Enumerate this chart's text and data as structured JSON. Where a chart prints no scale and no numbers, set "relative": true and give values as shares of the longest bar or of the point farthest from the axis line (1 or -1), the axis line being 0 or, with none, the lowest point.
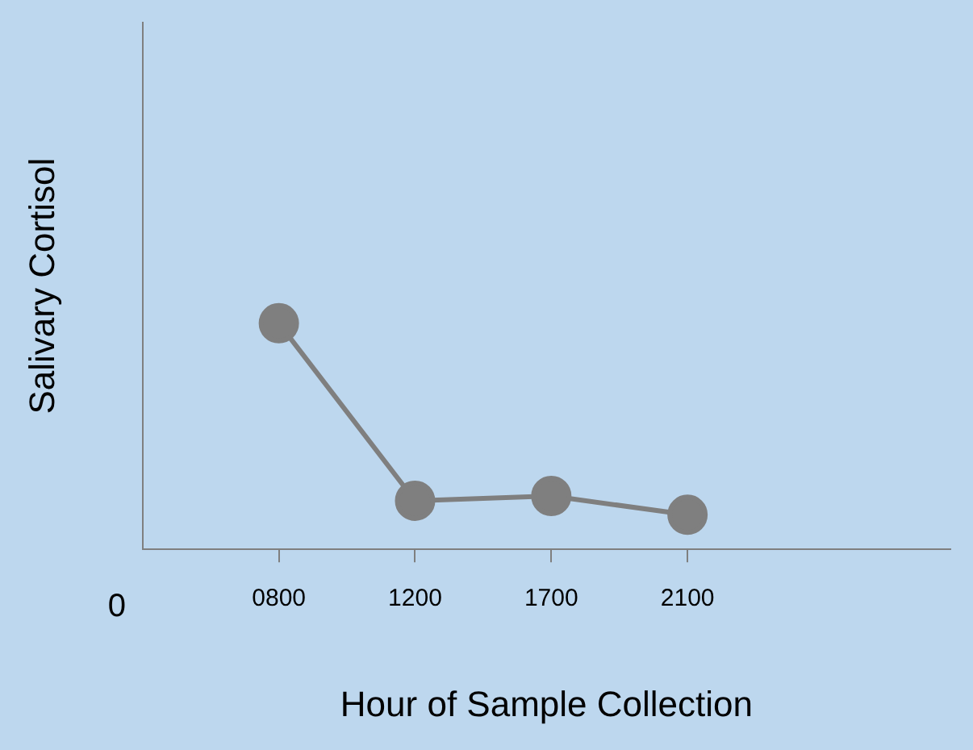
{
  "chart_data": {
    "type": "line",
    "relative": true,
    "xlabel": "Hour of Sample Collection",
    "ylabel": "Salivary Cortisol",
    "categories": [
      "0800",
      "1200",
      "1700",
      "2100"
    ],
    "series": [
      {
        "color": "#7f7f7f",
        "values": [
          1,
          0.215,
          0.236,
          0.153
        ]
      }
    ],
    "marker": "circle",
    "line_style": "solid",
    "grid": false,
    "legend": false,
    "annotations": [
      "0"
    ]
  }
}
